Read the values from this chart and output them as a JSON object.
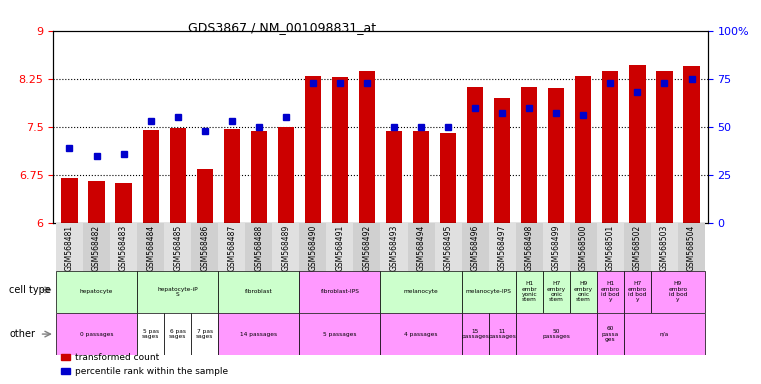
{
  "title": "GDS3867 / NM_001098831_at",
  "samples": [
    "GSM568481",
    "GSM568482",
    "GSM568483",
    "GSM568484",
    "GSM568485",
    "GSM568486",
    "GSM568487",
    "GSM568488",
    "GSM568489",
    "GSM568490",
    "GSM568491",
    "GSM568492",
    "GSM568493",
    "GSM568494",
    "GSM568495",
    "GSM568496",
    "GSM568497",
    "GSM568498",
    "GSM568499",
    "GSM568500",
    "GSM568501",
    "GSM568502",
    "GSM568503",
    "GSM568504"
  ],
  "bar_values": [
    6.7,
    6.65,
    6.62,
    7.45,
    7.48,
    6.84,
    7.47,
    7.43,
    7.5,
    8.3,
    8.28,
    8.37,
    7.43,
    7.43,
    7.4,
    8.12,
    7.95,
    8.12,
    8.1,
    8.3,
    8.37,
    8.47,
    8.37,
    8.45
  ],
  "percentile_values": [
    39,
    35,
    36,
    53,
    55,
    48,
    53,
    50,
    55,
    73,
    73,
    73,
    50,
    50,
    50,
    60,
    57,
    60,
    57,
    56,
    73,
    68,
    73,
    75
  ],
  "ylim_left": [
    6.0,
    9.0
  ],
  "ylim_right": [
    0,
    100
  ],
  "yticks_left": [
    6.0,
    6.75,
    7.5,
    8.25,
    9.0
  ],
  "yticks_right": [
    0,
    25,
    50,
    75,
    100
  ],
  "ytick_labels_left": [
    "6",
    "6.75",
    "7.5",
    "8.25",
    "9"
  ],
  "ytick_labels_right": [
    "0",
    "25",
    "50",
    "75",
    "100%"
  ],
  "bar_color": "#cc0000",
  "dot_color": "#0000cc",
  "ct_groups": [
    {
      "label": "hepatocyte",
      "start": 0,
      "end": 2,
      "color": "#ccffcc"
    },
    {
      "label": "hepatocyte-iP\nS",
      "start": 3,
      "end": 5,
      "color": "#ccffcc"
    },
    {
      "label": "fibroblast",
      "start": 6,
      "end": 8,
      "color": "#ccffcc"
    },
    {
      "label": "fibroblast-IPS",
      "start": 9,
      "end": 11,
      "color": "#ff99ff"
    },
    {
      "label": "melanocyte",
      "start": 12,
      "end": 14,
      "color": "#ccffcc"
    },
    {
      "label": "melanocyte-IPS",
      "start": 15,
      "end": 16,
      "color": "#ccffcc"
    },
    {
      "label": "H1\nembr\nyonic\nstem",
      "start": 17,
      "end": 17,
      "color": "#ccffcc"
    },
    {
      "label": "H7\nembry\nonic\nstem",
      "start": 18,
      "end": 18,
      "color": "#ccffcc"
    },
    {
      "label": "H9\nembry\nonic\nstem",
      "start": 19,
      "end": 19,
      "color": "#ccffcc"
    },
    {
      "label": "H1\nembro\nid bod\ny",
      "start": 20,
      "end": 20,
      "color": "#ff99ff"
    },
    {
      "label": "H7\nembro\nid bod\ny",
      "start": 21,
      "end": 21,
      "color": "#ff99ff"
    },
    {
      "label": "H9\nembro\nid bod\ny",
      "start": 22,
      "end": 23,
      "color": "#ff99ff"
    }
  ],
  "ot_groups": [
    {
      "label": "0 passages",
      "start": 0,
      "end": 2,
      "color": "#ff99ff"
    },
    {
      "label": "5 pas\nsages",
      "start": 3,
      "end": 3,
      "color": "#ffffff"
    },
    {
      "label": "6 pas\nsages",
      "start": 4,
      "end": 4,
      "color": "#ffffff"
    },
    {
      "label": "7 pas\nsages",
      "start": 5,
      "end": 5,
      "color": "#ffffff"
    },
    {
      "label": "14 passages",
      "start": 6,
      "end": 8,
      "color": "#ff99ff"
    },
    {
      "label": "5 passages",
      "start": 9,
      "end": 11,
      "color": "#ff99ff"
    },
    {
      "label": "4 passages",
      "start": 12,
      "end": 14,
      "color": "#ff99ff"
    },
    {
      "label": "15\npassages",
      "start": 15,
      "end": 15,
      "color": "#ff99ff"
    },
    {
      "label": "11\npassages",
      "start": 16,
      "end": 16,
      "color": "#ff99ff"
    },
    {
      "label": "50\npassages",
      "start": 17,
      "end": 19,
      "color": "#ff99ff"
    },
    {
      "label": "60\npassa\nges",
      "start": 20,
      "end": 20,
      "color": "#ff99ff"
    },
    {
      "label": "n/a",
      "start": 21,
      "end": 23,
      "color": "#ff99ff"
    }
  ]
}
